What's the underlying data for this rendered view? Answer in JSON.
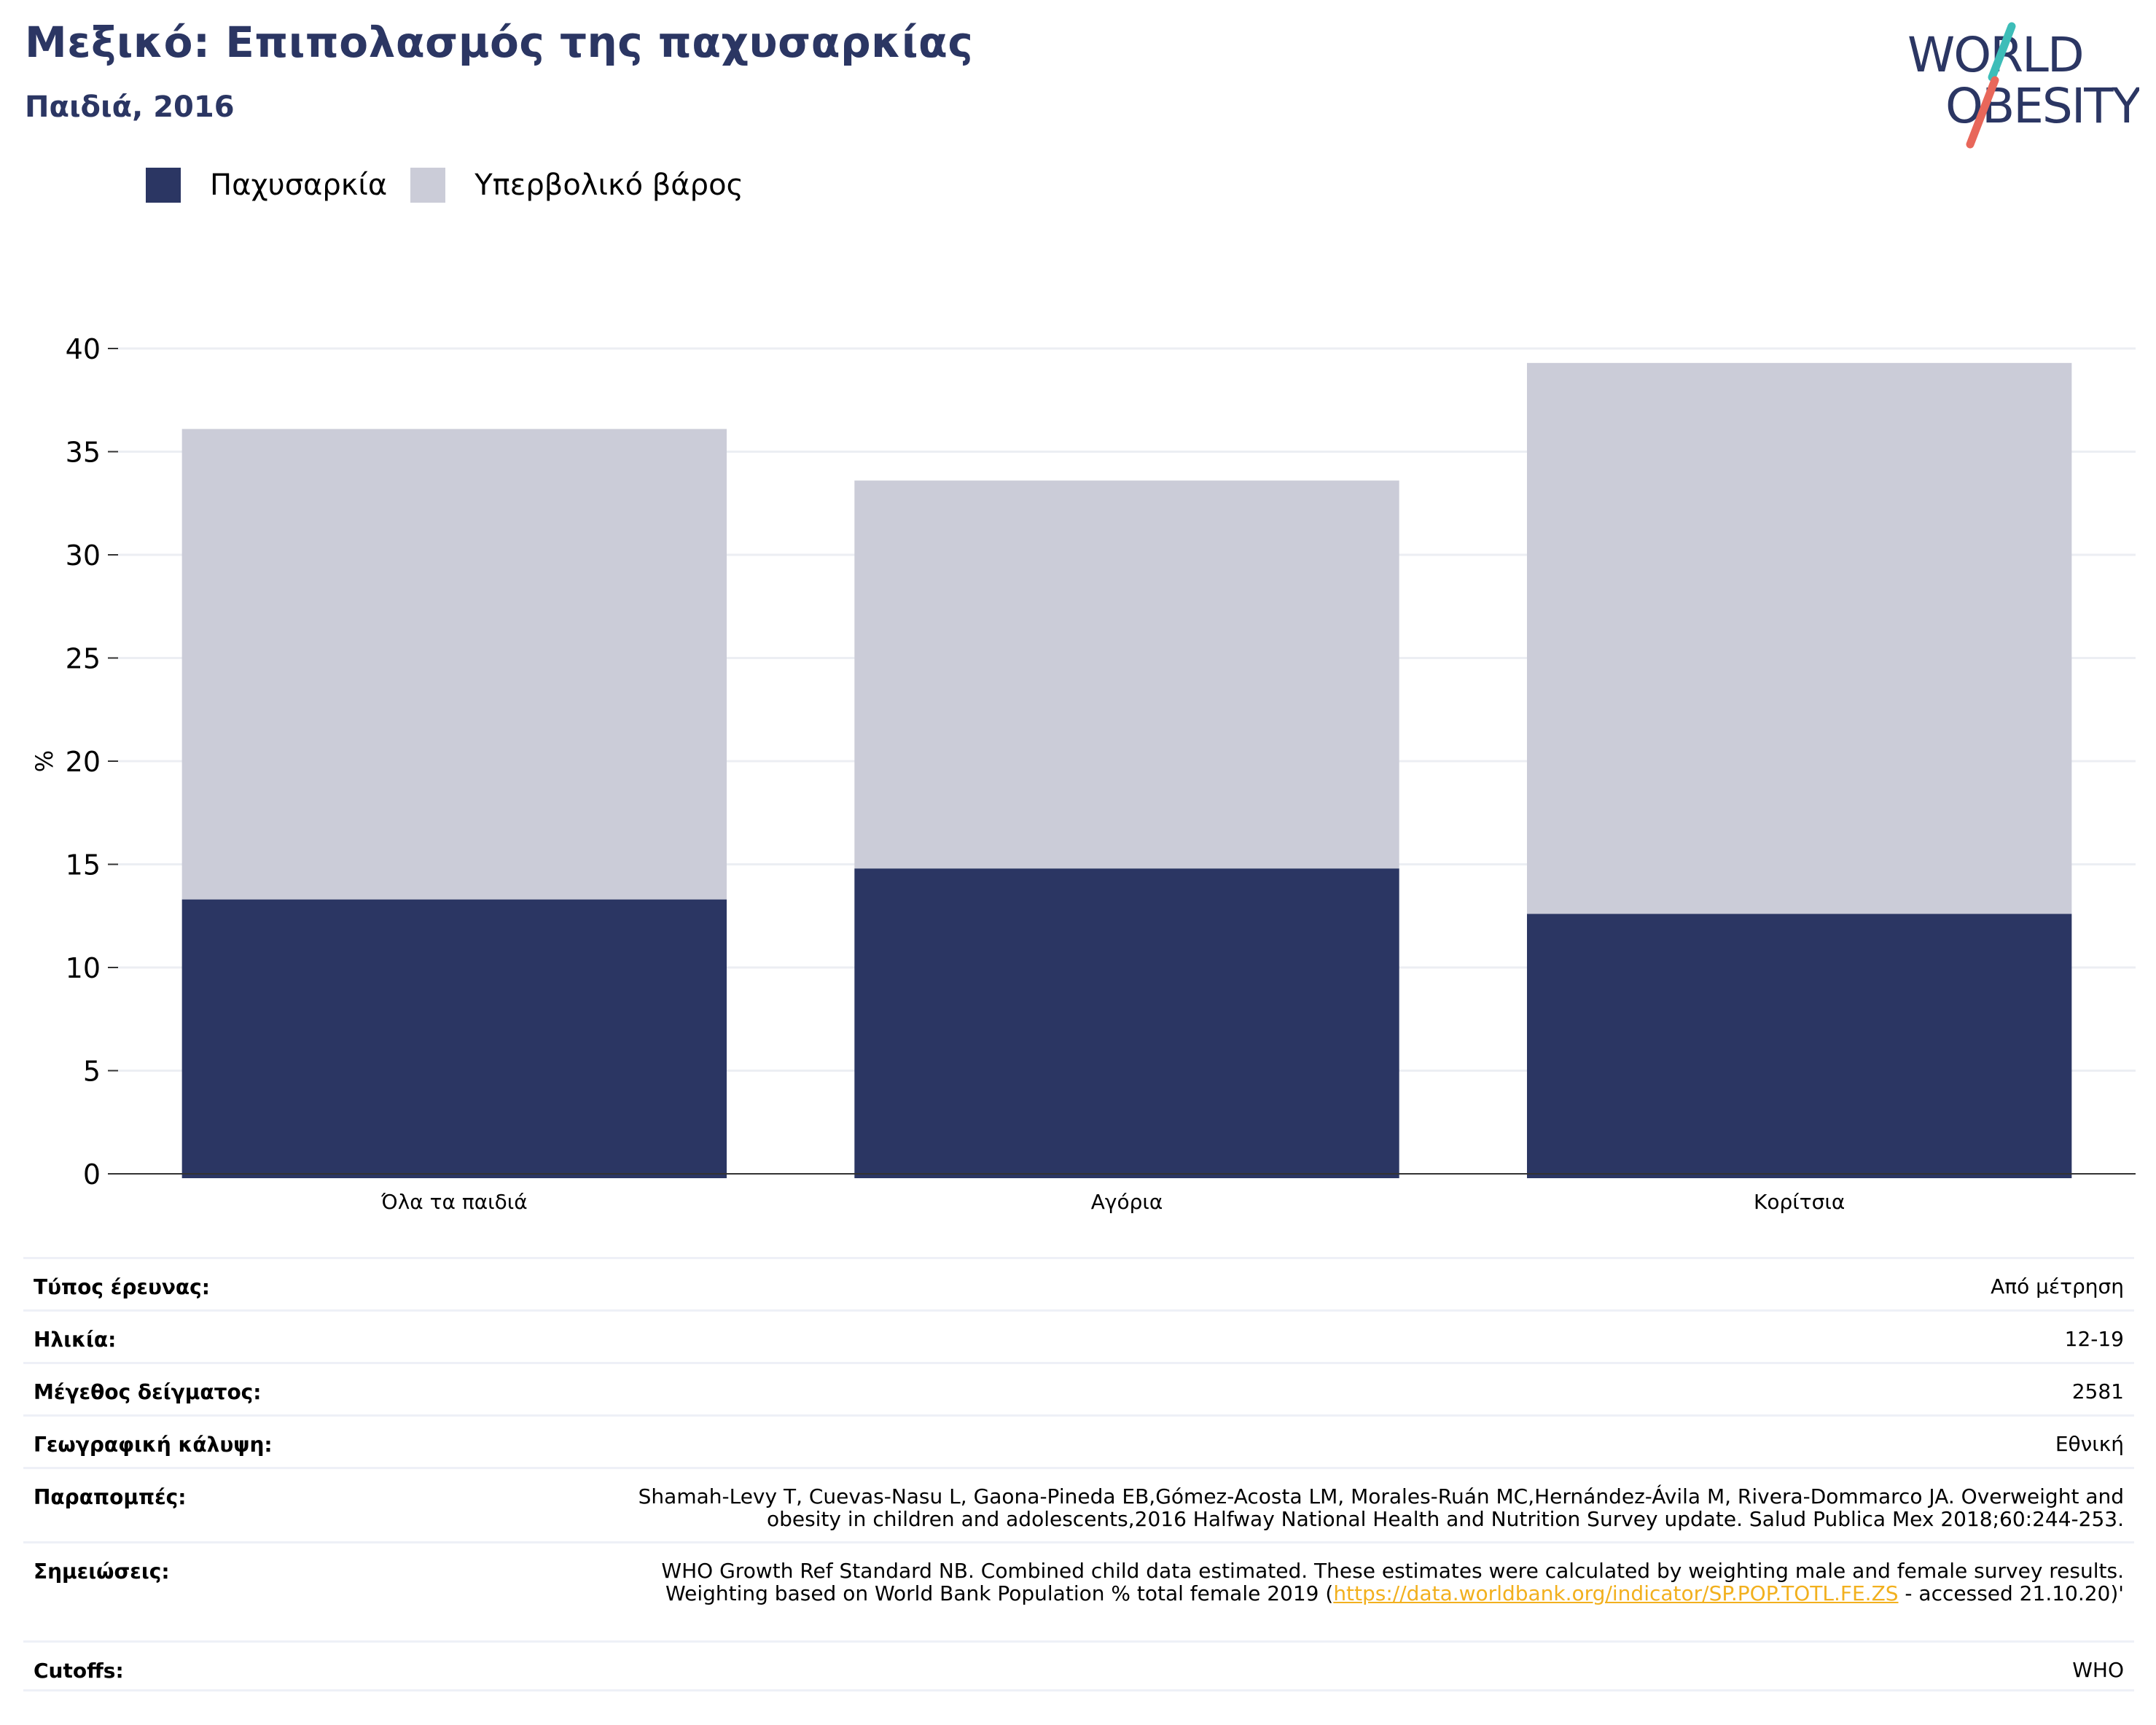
{
  "header": {
    "title": "Μεξικό: Επιπολασμός της παχυσαρκίας",
    "subtitle": "Παιδιά, 2016"
  },
  "logo": {
    "line1": "WORLD",
    "line2": "OBESITY"
  },
  "colors": {
    "obesity": "#2b3663",
    "overweight": "#cbccd8",
    "accent_teal": "#3dbdb8",
    "accent_coral": "#e8675a",
    "link": "#f2b01e"
  },
  "legend": [
    {
      "label": "Παχυσαρκία",
      "color": "#2b3663"
    },
    {
      "label": "Υπερβολικό βάρος",
      "color": "#cbccd8"
    }
  ],
  "chart_data": {
    "type": "bar",
    "stacked": true,
    "categories": [
      "Όλα τα παιδιά",
      "Αγόρια",
      "Κορίτσια"
    ],
    "series": [
      {
        "name": "Παχυσαρκία",
        "values": [
          13.3,
          14.8,
          12.6
        ]
      },
      {
        "name": "Υπερβολικό βάρος",
        "values": [
          22.8,
          18.8,
          26.7
        ]
      }
    ],
    "ylabel": "%",
    "ylim": [
      0,
      40
    ],
    "yticks": [
      0,
      5,
      10,
      15,
      20,
      25,
      30,
      35,
      40
    ],
    "grid": true,
    "legend_position": "top-left"
  },
  "metadata": {
    "survey_type": {
      "label": "Τύπος έρευνας:",
      "value": "Από μέτρηση"
    },
    "age": {
      "label": "Ηλικία:",
      "value": "12-19"
    },
    "sample_size": {
      "label": "Μέγεθος δείγματος:",
      "value": "2581"
    },
    "coverage": {
      "label": "Γεωγραφική κάλυψη:",
      "value": "Εθνική"
    },
    "references": {
      "label": "Παραπομπές:",
      "value": "Shamah-Levy T, Cuevas-Nasu L, Gaona-Pineda EB,Gómez-Acosta LM, Morales-Ruán MC,Hernández-Ávila M, Rivera-Dommarco JA. Overweight and obesity in children and adolescents,2016 Halfway National Health and Nutrition Survey update. Salud Publica Mex 2018;60:244-253."
    },
    "notes": {
      "label": "Σημειώσεις:",
      "value_before": "WHO Growth Ref Standard NB. Combined child data estimated. These estimates were calculated by weighting male and female survey results. Weighting based on World Bank Population % total female 2019 (",
      "link": "https://data.worldbank.org/indicator/SP.POP.TOTL.FE.ZS",
      "value_after": " - accessed 21.10.20)'"
    },
    "cutoffs": {
      "label": "Cutoffs:",
      "value": "WHO"
    }
  }
}
